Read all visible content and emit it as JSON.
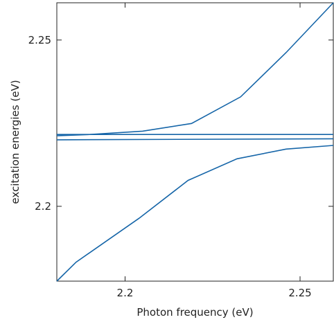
{
  "chart_data": {
    "type": "line",
    "xlabel": "Photon frequency (eV)",
    "ylabel": "excitation energies (eV)",
    "xlim": [
      2.1805,
      2.2595
    ],
    "ylim": [
      2.1775,
      2.2612
    ],
    "x_ticks": [
      2.2,
      2.25
    ],
    "x_tick_labels": [
      "2.2",
      "2.25"
    ],
    "y_ticks": [
      2.2,
      2.25
    ],
    "y_tick_labels": [
      "2.2",
      "2.25"
    ],
    "line_color": "#1565a8",
    "series": [
      {
        "x": [
          2.1805,
          2.19,
          2.205,
          2.219,
          2.233,
          2.246,
          2.2595
        ],
        "y": [
          2.2212,
          2.2216,
          2.2226,
          2.2249,
          2.2329,
          2.2462,
          2.2612
        ]
      },
      {
        "x": [
          2.1805,
          2.2595
        ],
        "y": [
          2.2216,
          2.2216
        ]
      },
      {
        "x": [
          2.1805,
          2.2595
        ],
        "y": [
          2.22,
          2.2203
        ]
      },
      {
        "x": [
          2.1805,
          2.186,
          2.204,
          2.218,
          2.232,
          2.246,
          2.2595
        ],
        "y": [
          2.1775,
          2.1832,
          2.1964,
          2.2078,
          2.2143,
          2.2172,
          2.2183
        ]
      }
    ]
  }
}
